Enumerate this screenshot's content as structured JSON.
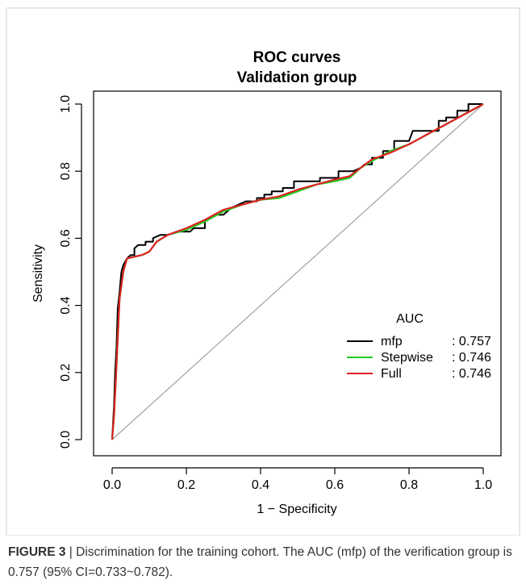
{
  "caption": {
    "label": "FIGURE 3",
    "separator": " | ",
    "text": "Discrimination for the training cohort. The AUC (mfp) of the verification group is 0.757 (95% CI=0.733~0.782)."
  },
  "chart_data": {
    "type": "line",
    "title": "ROC curves",
    "subtitle": "Validation group",
    "xlabel": "1 − Specificity",
    "ylabel": "Sensitivity",
    "xlim": [
      0,
      1
    ],
    "ylim": [
      0,
      1
    ],
    "xticks": [
      0.0,
      0.2,
      0.4,
      0.6,
      0.8,
      1.0
    ],
    "yticks": [
      0.0,
      0.2,
      0.4,
      0.6,
      0.8,
      1.0
    ],
    "xtick_labels": [
      "0.0",
      "0.2",
      "0.4",
      "0.6",
      "0.8",
      "1.0"
    ],
    "ytick_labels": [
      "0.0",
      "0.2",
      "0.4",
      "0.6",
      "0.8",
      "1.0"
    ],
    "grid": false,
    "reference_line": {
      "from": [
        0,
        0
      ],
      "to": [
        1,
        1
      ],
      "color": "#a0a0a0"
    },
    "legend": {
      "title": "AUC",
      "placement": "bottom-right"
    },
    "series": [
      {
        "name": "mfp",
        "auc_label": ": 0.757",
        "color": "#000000",
        "points": [
          [
            0,
            0
          ],
          [
            0.002,
            0.04
          ],
          [
            0.005,
            0.1
          ],
          [
            0.008,
            0.2
          ],
          [
            0.012,
            0.28
          ],
          [
            0.015,
            0.39
          ],
          [
            0.02,
            0.44
          ],
          [
            0.025,
            0.5
          ],
          [
            0.03,
            0.52
          ],
          [
            0.035,
            0.53
          ],
          [
            0.04,
            0.54
          ],
          [
            0.05,
            0.55
          ],
          [
            0.06,
            0.55
          ],
          [
            0.06,
            0.57
          ],
          [
            0.07,
            0.58
          ],
          [
            0.09,
            0.58
          ],
          [
            0.09,
            0.59
          ],
          [
            0.11,
            0.59
          ],
          [
            0.11,
            0.6
          ],
          [
            0.13,
            0.61
          ],
          [
            0.15,
            0.61
          ],
          [
            0.18,
            0.62
          ],
          [
            0.21,
            0.62
          ],
          [
            0.22,
            0.63
          ],
          [
            0.25,
            0.63
          ],
          [
            0.25,
            0.65
          ],
          [
            0.28,
            0.67
          ],
          [
            0.3,
            0.67
          ],
          [
            0.32,
            0.69
          ],
          [
            0.34,
            0.7
          ],
          [
            0.36,
            0.71
          ],
          [
            0.39,
            0.71
          ],
          [
            0.39,
            0.72
          ],
          [
            0.41,
            0.72
          ],
          [
            0.41,
            0.73
          ],
          [
            0.43,
            0.73
          ],
          [
            0.43,
            0.74
          ],
          [
            0.46,
            0.74
          ],
          [
            0.46,
            0.75
          ],
          [
            0.49,
            0.75
          ],
          [
            0.49,
            0.77
          ],
          [
            0.56,
            0.77
          ],
          [
            0.56,
            0.78
          ],
          [
            0.61,
            0.78
          ],
          [
            0.61,
            0.8
          ],
          [
            0.65,
            0.8
          ],
          [
            0.67,
            0.81
          ],
          [
            0.68,
            0.82
          ],
          [
            0.7,
            0.82
          ],
          [
            0.7,
            0.84
          ],
          [
            0.73,
            0.84
          ],
          [
            0.73,
            0.86
          ],
          [
            0.76,
            0.86
          ],
          [
            0.76,
            0.89
          ],
          [
            0.8,
            0.89
          ],
          [
            0.81,
            0.92
          ],
          [
            0.88,
            0.92
          ],
          [
            0.88,
            0.95
          ],
          [
            0.9,
            0.95
          ],
          [
            0.9,
            0.96
          ],
          [
            0.93,
            0.96
          ],
          [
            0.93,
            0.98
          ],
          [
            0.96,
            0.98
          ],
          [
            0.96,
            1.0
          ],
          [
            1.0,
            1.0
          ]
        ]
      },
      {
        "name": "Stepwise",
        "auc_label": ": 0.746",
        "color": "#22cc22",
        "points": [
          [
            0,
            0
          ],
          [
            0.005,
            0.07
          ],
          [
            0.01,
            0.18
          ],
          [
            0.015,
            0.3
          ],
          [
            0.02,
            0.42
          ],
          [
            0.03,
            0.5
          ],
          [
            0.04,
            0.54
          ],
          [
            0.06,
            0.545
          ],
          [
            0.08,
            0.55
          ],
          [
            0.1,
            0.56
          ],
          [
            0.12,
            0.59
          ],
          [
            0.15,
            0.61
          ],
          [
            0.2,
            0.625
          ],
          [
            0.25,
            0.65
          ],
          [
            0.3,
            0.68
          ],
          [
            0.35,
            0.7
          ],
          [
            0.4,
            0.715
          ],
          [
            0.45,
            0.72
          ],
          [
            0.5,
            0.74
          ],
          [
            0.55,
            0.76
          ],
          [
            0.6,
            0.77
          ],
          [
            0.64,
            0.78
          ],
          [
            0.67,
            0.81
          ],
          [
            0.7,
            0.83
          ],
          [
            0.75,
            0.86
          ],
          [
            0.8,
            0.88
          ],
          [
            0.85,
            0.91
          ],
          [
            0.9,
            0.94
          ],
          [
            0.95,
            0.97
          ],
          [
            1.0,
            1.0
          ]
        ]
      },
      {
        "name": "Full",
        "auc_label": ": 0.746",
        "color": "#dd2222",
        "points": [
          [
            0,
            0
          ],
          [
            0.005,
            0.07
          ],
          [
            0.01,
            0.18
          ],
          [
            0.015,
            0.3
          ],
          [
            0.02,
            0.42
          ],
          [
            0.03,
            0.5
          ],
          [
            0.04,
            0.54
          ],
          [
            0.06,
            0.545
          ],
          [
            0.08,
            0.55
          ],
          [
            0.1,
            0.56
          ],
          [
            0.12,
            0.59
          ],
          [
            0.15,
            0.61
          ],
          [
            0.2,
            0.63
          ],
          [
            0.25,
            0.655
          ],
          [
            0.3,
            0.685
          ],
          [
            0.35,
            0.7
          ],
          [
            0.4,
            0.715
          ],
          [
            0.45,
            0.725
          ],
          [
            0.5,
            0.745
          ],
          [
            0.55,
            0.76
          ],
          [
            0.6,
            0.775
          ],
          [
            0.64,
            0.785
          ],
          [
            0.67,
            0.81
          ],
          [
            0.7,
            0.835
          ],
          [
            0.75,
            0.855
          ],
          [
            0.8,
            0.88
          ],
          [
            0.85,
            0.91
          ],
          [
            0.9,
            0.94
          ],
          [
            0.95,
            0.97
          ],
          [
            1.0,
            1.0
          ]
        ]
      }
    ]
  }
}
